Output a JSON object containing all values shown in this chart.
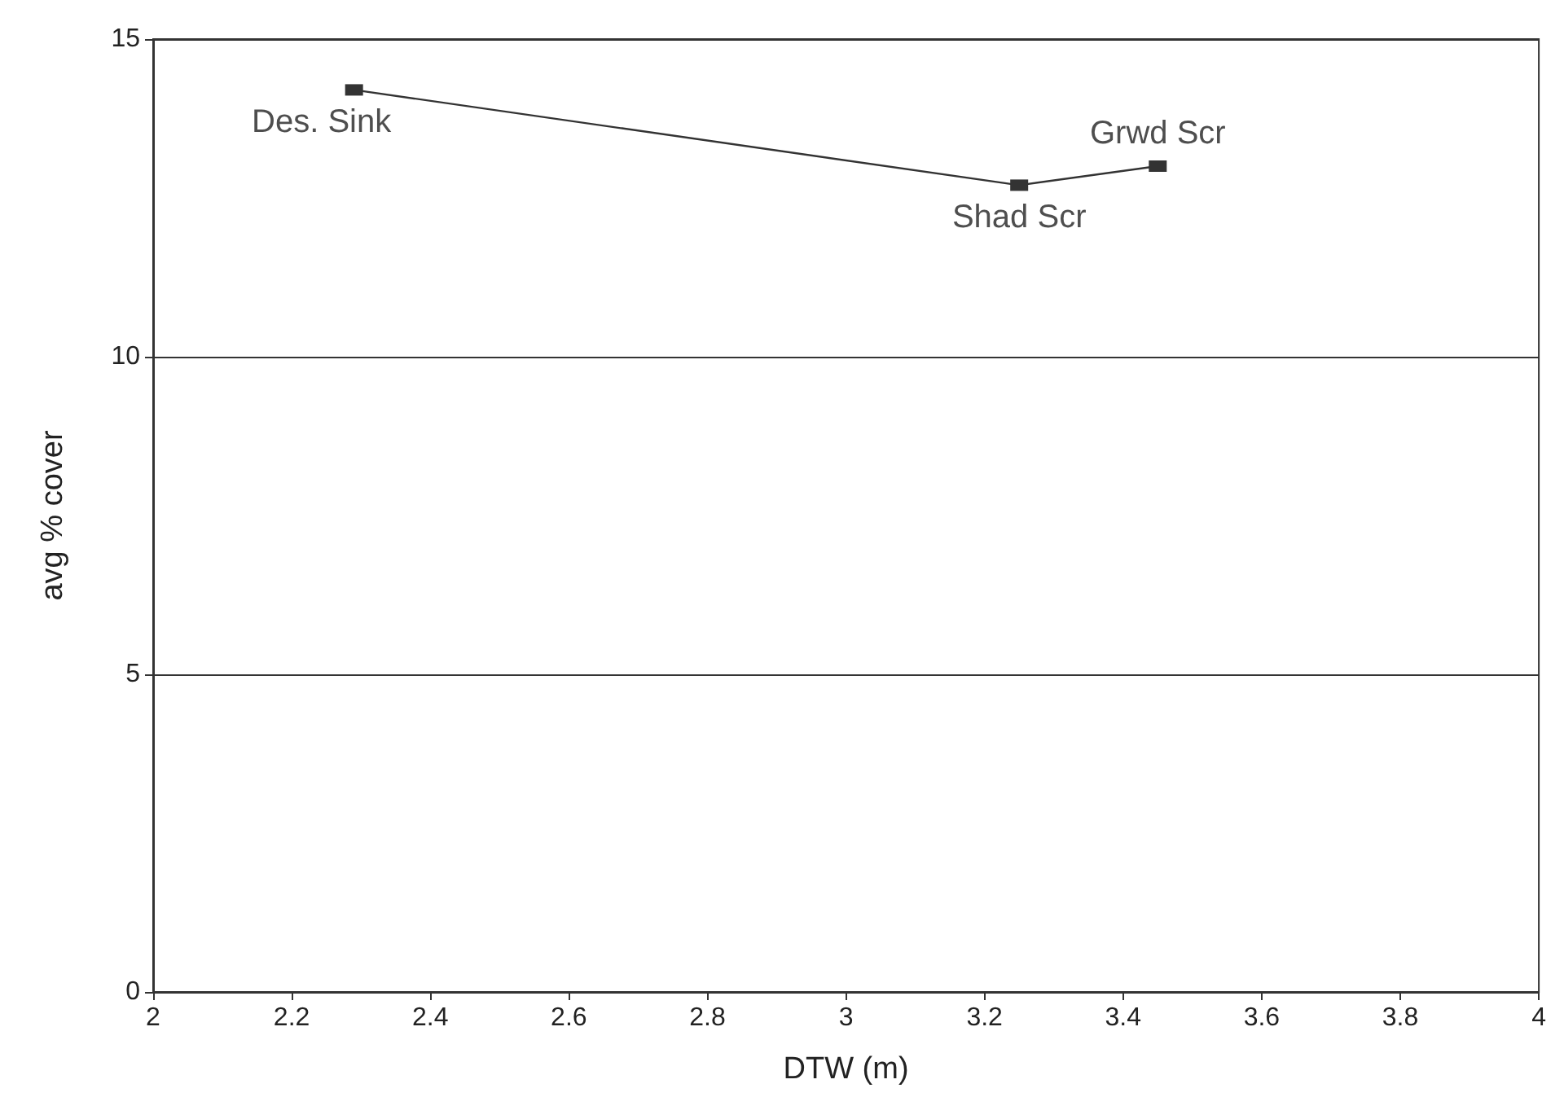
{
  "chart_data": {
    "type": "line",
    "xlabel": "DTW (m)",
    "ylabel": "avg % cover",
    "x": [
      2.29,
      3.25,
      3.45
    ],
    "series": [
      {
        "color": "#333333",
        "values": [
          14.2,
          12.7,
          13.0
        ]
      }
    ],
    "xlim": [
      2,
      4
    ],
    "xticks": [
      2,
      2.2,
      2.4,
      2.6,
      2.8,
      3,
      3.2,
      3.4,
      3.6,
      3.8,
      4
    ],
    "ylim": [
      0,
      15
    ],
    "yticks": [
      0,
      5,
      10,
      15
    ],
    "grid": "y",
    "marker": "square",
    "line_style": "solid",
    "annotations": [
      {
        "text": "Des. Sink",
        "x": 2.29,
        "y": 14.2
      },
      {
        "text": "Shad Scr",
        "x": 3.25,
        "y": 12.7
      },
      {
        "text": "Grwd Scr",
        "x": 3.45,
        "y": 13.0
      }
    ]
  }
}
